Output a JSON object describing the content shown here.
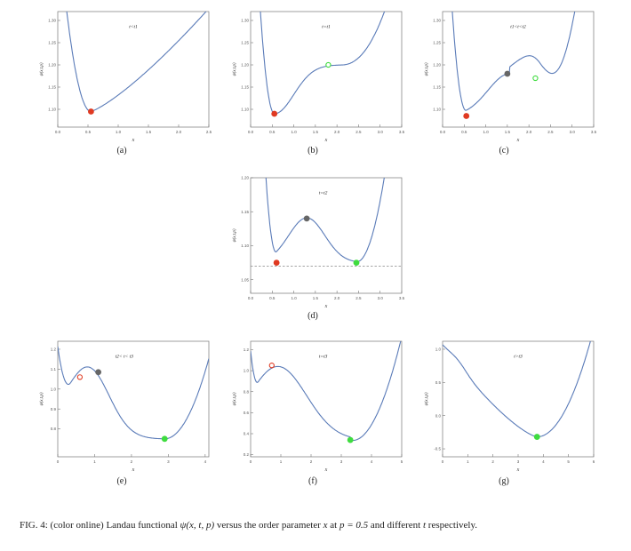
{
  "caption": {
    "prefix": "FIG. 4:",
    "text_before_psi": " (color online) Landau functional ",
    "psi_expr": "ψ(x, t, p)",
    "text_mid": " versus the order parameter ",
    "x_sym": "x",
    "text_at": " at ",
    "p_expr": "p = 0.5",
    "text_tail": " and different ",
    "t_sym": "t",
    "text_end": " respectively."
  },
  "colors": {
    "curve": "#5a7bb8",
    "red": "#e03a22",
    "gray": "#666666",
    "green": "#3fdc3f",
    "open_green": "#3fdc3f",
    "open_red": "#c83a22"
  },
  "chart_data": [
    {
      "id": "a",
      "type": "line",
      "panel_label": "(a)",
      "annotation": "t<t1",
      "xlabel": "x",
      "ylabel": "ψ(x,t,p)",
      "xlim": [
        0,
        2.5
      ],
      "ylim": [
        1.06,
        1.32
      ],
      "xticks": [
        "0.0",
        "0.5",
        "1.0",
        "1.5",
        "2.0",
        "2.5"
      ],
      "yticks": [
        "1.10",
        "1.15",
        "1.20",
        "1.25",
        "1.30"
      ],
      "points": [
        {
          "x": 0.55,
          "y": 1.095,
          "style": "filled",
          "color": "red"
        }
      ]
    },
    {
      "id": "b",
      "type": "line",
      "panel_label": "(b)",
      "annotation": "t=t1",
      "xlabel": "x",
      "ylabel": "ψ(x,t,p)",
      "xlim": [
        0,
        3.5
      ],
      "ylim": [
        1.06,
        1.32
      ],
      "xticks": [
        "0.0",
        "0.5",
        "1.0",
        "1.5",
        "2.0",
        "2.5",
        "3.0",
        "3.5"
      ],
      "yticks": [
        "1.10",
        "1.15",
        "1.20",
        "1.25",
        "1.30"
      ],
      "points": [
        {
          "x": 0.55,
          "y": 1.09,
          "style": "filled",
          "color": "red"
        },
        {
          "x": 1.8,
          "y": 1.2,
          "style": "open",
          "color": "green"
        }
      ]
    },
    {
      "id": "c",
      "type": "line",
      "panel_label": "(c)",
      "annotation": "t1<t<t2",
      "xlabel": "x",
      "ylabel": "ψ(x,t,p)",
      "xlim": [
        0,
        3.5
      ],
      "ylim": [
        1.06,
        1.32
      ],
      "xticks": [
        "0.0",
        "0.5",
        "1.0",
        "1.5",
        "2.0",
        "2.5",
        "3.0",
        "3.5"
      ],
      "yticks": [
        "1.10",
        "1.15",
        "1.20",
        "1.25",
        "1.30"
      ],
      "points": [
        {
          "x": 0.55,
          "y": 1.085,
          "style": "filled",
          "color": "red"
        },
        {
          "x": 1.5,
          "y": 1.18,
          "style": "filled",
          "color": "gray"
        },
        {
          "x": 2.15,
          "y": 1.17,
          "style": "open",
          "color": "green"
        }
      ]
    },
    {
      "id": "d",
      "type": "line",
      "panel_label": "(d)",
      "annotation": "t=t2",
      "xlabel": "x",
      "ylabel": "ψ(x,t,p)",
      "xlim": [
        0,
        3.5
      ],
      "ylim": [
        1.03,
        1.2
      ],
      "xticks": [
        "0.0",
        "0.5",
        "1.0",
        "1.5",
        "2.0",
        "2.5",
        "3.0",
        "3.5"
      ],
      "yticks": [
        "1.05",
        "1.10",
        "1.15",
        "1.20"
      ],
      "dashed_y": 1.07,
      "points": [
        {
          "x": 0.6,
          "y": 1.075,
          "style": "filled",
          "color": "red"
        },
        {
          "x": 1.3,
          "y": 1.14,
          "style": "filled",
          "color": "gray"
        },
        {
          "x": 2.45,
          "y": 1.075,
          "style": "filled",
          "color": "green"
        }
      ]
    },
    {
      "id": "e",
      "type": "line",
      "panel_label": "(e)",
      "annotation": "t2< t< t3",
      "xlabel": "x",
      "ylabel": "ψ(x,t,p)",
      "xlim": [
        0,
        4.1
      ],
      "ylim": [
        0.66,
        1.24
      ],
      "xticks": [
        "0",
        "1",
        "2",
        "3",
        "4"
      ],
      "yticks": [
        "0.8",
        "0.9",
        "1.0",
        "1.1",
        "1.2"
      ],
      "points": [
        {
          "x": 0.6,
          "y": 1.06,
          "style": "open",
          "color": "red"
        },
        {
          "x": 1.1,
          "y": 1.085,
          "style": "filled",
          "color": "gray"
        },
        {
          "x": 2.9,
          "y": 0.75,
          "style": "filled",
          "color": "green"
        }
      ]
    },
    {
      "id": "f",
      "type": "line",
      "panel_label": "(f)",
      "annotation": "t=t3",
      "xlabel": "x",
      "ylabel": "ψ(x,t,p)",
      "xlim": [
        0,
        5
      ],
      "ylim": [
        0.18,
        1.28
      ],
      "xticks": [
        "0",
        "1",
        "2",
        "3",
        "4",
        "5"
      ],
      "yticks": [
        "0.2",
        "0.4",
        "0.6",
        "0.8",
        "1.0",
        "1.2"
      ],
      "points": [
        {
          "x": 0.7,
          "y": 1.05,
          "style": "open",
          "color": "red"
        },
        {
          "x": 3.3,
          "y": 0.34,
          "style": "filled",
          "color": "green"
        }
      ]
    },
    {
      "id": "g",
      "type": "line",
      "panel_label": "(g)",
      "annotation": "t>t3",
      "xlabel": "x",
      "ylabel": "ψ(x,t,p)",
      "xlim": [
        0,
        6
      ],
      "ylim": [
        -0.62,
        1.12
      ],
      "xticks": [
        "0",
        "1",
        "2",
        "3",
        "4",
        "5",
        "6"
      ],
      "yticks": [
        "-0.5",
        "0.0",
        "0.5",
        "1.0"
      ],
      "points": [
        {
          "x": 3.75,
          "y": -0.32,
          "style": "filled",
          "color": "green"
        }
      ]
    }
  ]
}
